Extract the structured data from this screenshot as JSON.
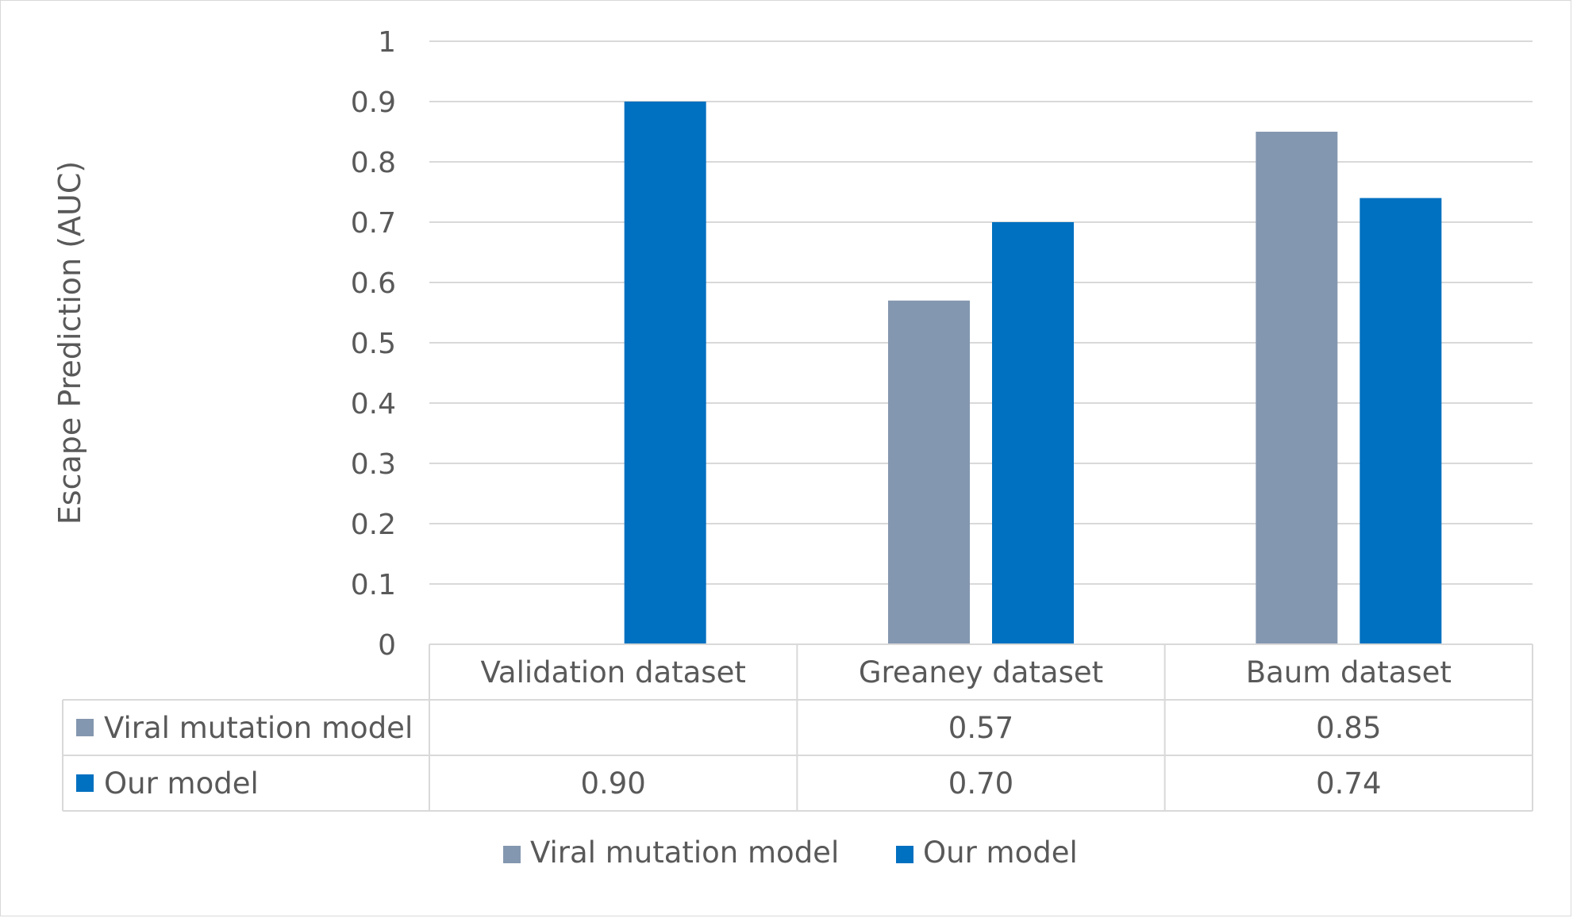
{
  "chart_data": {
    "type": "bar",
    "categories": [
      "Validation dataset",
      "Greaney dataset",
      "Baum dataset"
    ],
    "series": [
      {
        "name": "Viral mutation model",
        "values": [
          null,
          0.57,
          0.85
        ],
        "labels": [
          "",
          "0.57",
          "0.85"
        ],
        "color": "#8497b0"
      },
      {
        "name": "Our model",
        "values": [
          0.9,
          0.7,
          0.74
        ],
        "labels": [
          "0.90",
          "0.70",
          "0.74"
        ],
        "color": "#0070c0"
      }
    ],
    "ylabel": "Escape Prediction (AUC)",
    "xlabel": "",
    "ylim": [
      0,
      1
    ],
    "yticks": [
      "0",
      "0.1",
      "0.2",
      "0.3",
      "0.4",
      "0.5",
      "0.6",
      "0.7",
      "0.8",
      "0.9",
      "1"
    ],
    "grid": true,
    "legend": "bottom",
    "data_table": true
  }
}
